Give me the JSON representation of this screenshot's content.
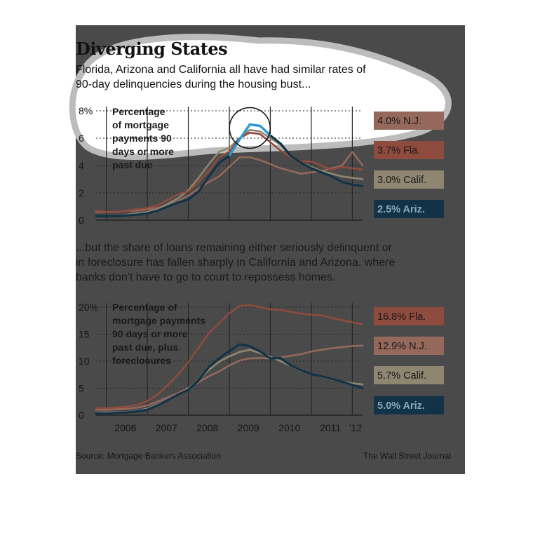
{
  "header": {
    "title": "Diverging States",
    "intro_line1": "Florida, Arizona and California all have had similar rates of",
    "intro_line2": "90-day delinquencies during the housing bust..."
  },
  "note": {
    "line1": "...but the share of loans remaining either seriously delinquent or",
    "line2": "in foreclosure has fallen sharply in California and Arizona, where",
    "line3": "banks don't have to go to court to repossess homes."
  },
  "footer": {
    "source": "Source: Mortgage Bankers Association",
    "credit": "The Wall Street Journal"
  },
  "colors": {
    "fla": "#8e4b3e",
    "nj": "#94685b",
    "calif": "#8e8670",
    "ariz": "#123347",
    "highlight": "#2a9bd8",
    "panel": "#4a4a4a"
  },
  "chart_data": [
    {
      "type": "line",
      "description_lines": [
        "Percentage",
        "of mortgage",
        "payments 90",
        "days or more",
        "past due"
      ],
      "y_ticks": [
        "8%",
        "6",
        "4",
        "2",
        "0"
      ],
      "ylim": [
        0,
        8
      ],
      "x": [
        2005.75,
        2006.0,
        2006.25,
        2006.5,
        2006.75,
        2007.0,
        2007.25,
        2007.5,
        2007.75,
        2008.0,
        2008.25,
        2008.5,
        2008.75,
        2009.0,
        2009.25,
        2009.5,
        2009.75,
        2010.0,
        2010.25,
        2010.5,
        2010.75,
        2011.0,
        2011.25,
        2011.5,
        2011.75,
        2012.0,
        2012.25
      ],
      "series": [
        {
          "key": "nj",
          "label": "4.0% N.J.",
          "values": [
            0.6,
            0.6,
            0.6,
            0.7,
            0.7,
            0.8,
            0.9,
            1.1,
            1.4,
            1.8,
            2.3,
            2.8,
            3.2,
            3.9,
            4.6,
            4.6,
            4.4,
            4.1,
            3.8,
            3.6,
            3.4,
            3.5,
            3.6,
            3.8,
            4.0,
            5.0,
            4.0
          ]
        },
        {
          "key": "fla",
          "label": "3.7% Fla.",
          "values": [
            0.7,
            0.6,
            0.6,
            0.7,
            0.8,
            0.9,
            1.1,
            1.5,
            1.9,
            2.1,
            2.8,
            3.6,
            4.6,
            5.0,
            6.0,
            6.4,
            6.3,
            5.7,
            5.1,
            4.6,
            4.3,
            4.3,
            4.0,
            3.7,
            3.9,
            3.8,
            3.7
          ]
        },
        {
          "key": "calif",
          "label": "3.0% Calif.",
          "values": [
            0.3,
            0.3,
            0.3,
            0.4,
            0.5,
            0.6,
            0.8,
            1.2,
            1.6,
            2.2,
            3.1,
            4.1,
            5.0,
            5.3,
            6.0,
            6.6,
            6.5,
            6.0,
            5.5,
            4.7,
            4.2,
            3.9,
            3.6,
            3.4,
            3.2,
            3.1,
            3.0
          ]
        },
        {
          "key": "ariz",
          "label": "2.5% Ariz.",
          "values": [
            0.3,
            0.3,
            0.3,
            0.35,
            0.4,
            0.5,
            0.7,
            1.0,
            1.3,
            1.5,
            2.1,
            3.2,
            4.2,
            4.7,
            5.9,
            7.0,
            6.9,
            6.2,
            5.6,
            4.7,
            4.2,
            3.8,
            3.5,
            3.2,
            2.8,
            2.6,
            2.5
          ]
        }
      ]
    },
    {
      "type": "line",
      "description_lines": [
        "Percentage of",
        "mortgage payments",
        "90 days or more",
        "past due, plus",
        "foreclosures"
      ],
      "y_ticks": [
        "20%",
        "15",
        "10",
        "5",
        "0"
      ],
      "ylim": [
        0,
        20
      ],
      "x_ticks": [
        "2006",
        "2007",
        "2008",
        "2009",
        "2010",
        "2011",
        "'12"
      ],
      "x": [
        2005.75,
        2006.0,
        2006.25,
        2006.5,
        2006.75,
        2007.0,
        2007.25,
        2007.5,
        2007.75,
        2008.0,
        2008.25,
        2008.5,
        2008.75,
        2009.0,
        2009.25,
        2009.5,
        2009.75,
        2010.0,
        2010.25,
        2010.5,
        2010.75,
        2011.0,
        2011.25,
        2011.5,
        2011.75,
        2012.0,
        2012.25
      ],
      "series": [
        {
          "key": "fla",
          "label": "16.8% Fla.",
          "values": [
            1.3,
            1.3,
            1.4,
            1.6,
            1.9,
            2.6,
            3.8,
            5.6,
            7.5,
            9.8,
            12.5,
            15.2,
            17.0,
            18.9,
            20.2,
            20.4,
            20.0,
            19.6,
            19.5,
            19.1,
            18.8,
            18.6,
            18.5,
            18.0,
            17.6,
            17.2,
            16.8
          ]
        },
        {
          "key": "nj",
          "label": "12.9% N.J.",
          "values": [
            1.0,
            1.0,
            1.1,
            1.2,
            1.4,
            1.8,
            2.5,
            3.3,
            4.1,
            5.0,
            6.1,
            7.2,
            8.1,
            9.2,
            10.1,
            10.5,
            10.6,
            10.5,
            10.7,
            11.0,
            11.3,
            11.8,
            12.1,
            12.4,
            12.6,
            12.8,
            12.9
          ]
        },
        {
          "key": "calif",
          "label": "5.7% Calif.",
          "values": [
            0.4,
            0.5,
            0.5,
            0.6,
            0.8,
            1.2,
            2.0,
            2.9,
            3.8,
            4.9,
            6.4,
            8.4,
            9.9,
            10.9,
            11.7,
            12.1,
            11.5,
            10.8,
            10.0,
            9.1,
            8.2,
            7.6,
            7.1,
            6.6,
            6.2,
            5.9,
            5.7
          ]
        },
        {
          "key": "ariz",
          "label": "5.0% Ariz.",
          "values": [
            0.3,
            0.3,
            0.4,
            0.5,
            0.7,
            1.0,
            1.8,
            2.8,
            3.8,
            4.7,
            6.4,
            8.9,
            10.5,
            11.9,
            13.1,
            12.8,
            11.8,
            10.5,
            10.6,
            9.2,
            8.3,
            7.6,
            7.2,
            6.7,
            6.2,
            5.6,
            5.0
          ]
        }
      ]
    }
  ]
}
